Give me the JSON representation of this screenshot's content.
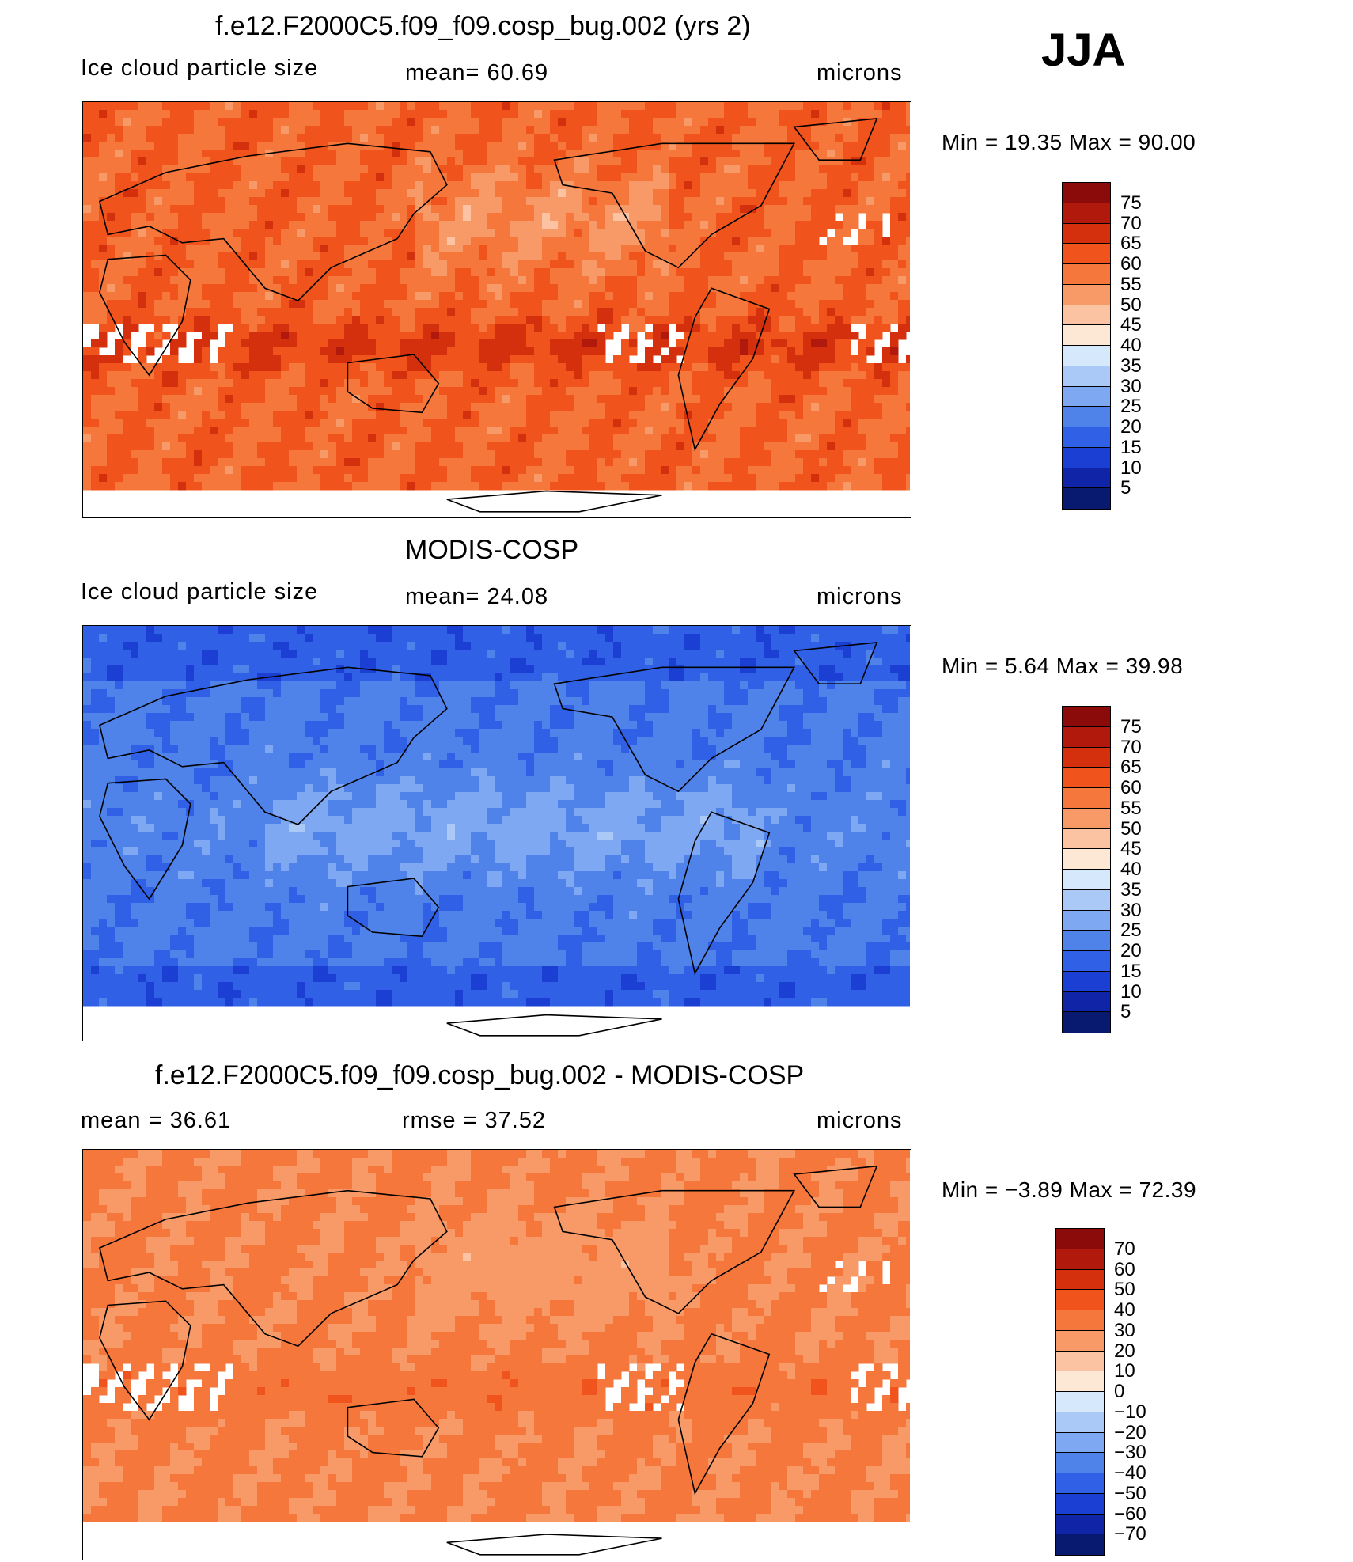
{
  "season": "JJA",
  "panels": [
    {
      "title": "f.e12.F2000C5.f09_f09.cosp_bug.002 (yrs 2)",
      "left_label": "Ice cloud particle size",
      "mid_label": "mean=   60.69",
      "units": "microns",
      "minmax": "Min  =    19.35  Max  =    90.00",
      "field": "model",
      "colorbar": {
        "labels": [
          "75",
          "70",
          "65",
          "60",
          "55",
          "50",
          "45",
          "40",
          "35",
          "30",
          "25",
          "20",
          "15",
          "10",
          "5"
        ],
        "colors": [
          "#8b0a0a",
          "#b0190c",
          "#d4300e",
          "#f0541c",
          "#f6773c",
          "#f89a68",
          "#fbc3a2",
          "#fde8d6",
          "#d6e8fb",
          "#aac9f7",
          "#7fa8f2",
          "#4f83ea",
          "#2f60e6",
          "#1a3fd2",
          "#0f24a6",
          "#071a70"
        ]
      }
    },
    {
      "title": "MODIS-COSP",
      "left_label": "Ice cloud particle size",
      "mid_label": "mean=   24.08",
      "units": "microns",
      "minmax": "Min  =     5.64  Max  =    39.98",
      "field": "obs",
      "colorbar": {
        "labels": [
          "75",
          "70",
          "65",
          "60",
          "55",
          "50",
          "45",
          "40",
          "35",
          "30",
          "25",
          "20",
          "15",
          "10",
          "5"
        ],
        "colors": [
          "#8b0a0a",
          "#b0190c",
          "#d4300e",
          "#f0541c",
          "#f6773c",
          "#f89a68",
          "#fbc3a2",
          "#fde8d6",
          "#d6e8fb",
          "#aac9f7",
          "#7fa8f2",
          "#4f83ea",
          "#2f60e6",
          "#1a3fd2",
          "#0f24a6",
          "#071a70"
        ]
      }
    },
    {
      "title": "f.e12.F2000C5.f09_f09.cosp_bug.002 - MODIS-COSP",
      "left_label": "mean  =    36.61",
      "mid_label": "rmse  =    37.52",
      "units": "microns",
      "minmax": "Min  =   −3.89  Max  =    72.39",
      "field": "diff",
      "colorbar": {
        "labels": [
          "70",
          "60",
          "50",
          "40",
          "30",
          "20",
          "10",
          "0",
          "−10",
          "−20",
          "−30",
          "−40",
          "−50",
          "−60",
          "−70"
        ],
        "colors": [
          "#8b0a0a",
          "#b0190c",
          "#d4300e",
          "#f0541c",
          "#f6773c",
          "#f89a68",
          "#fbc3a2",
          "#fde8d6",
          "#d6e8fb",
          "#aac9f7",
          "#7fa8f2",
          "#4f83ea",
          "#2f60e6",
          "#1a3fd2",
          "#0f24a6",
          "#071a70"
        ]
      }
    }
  ]
}
